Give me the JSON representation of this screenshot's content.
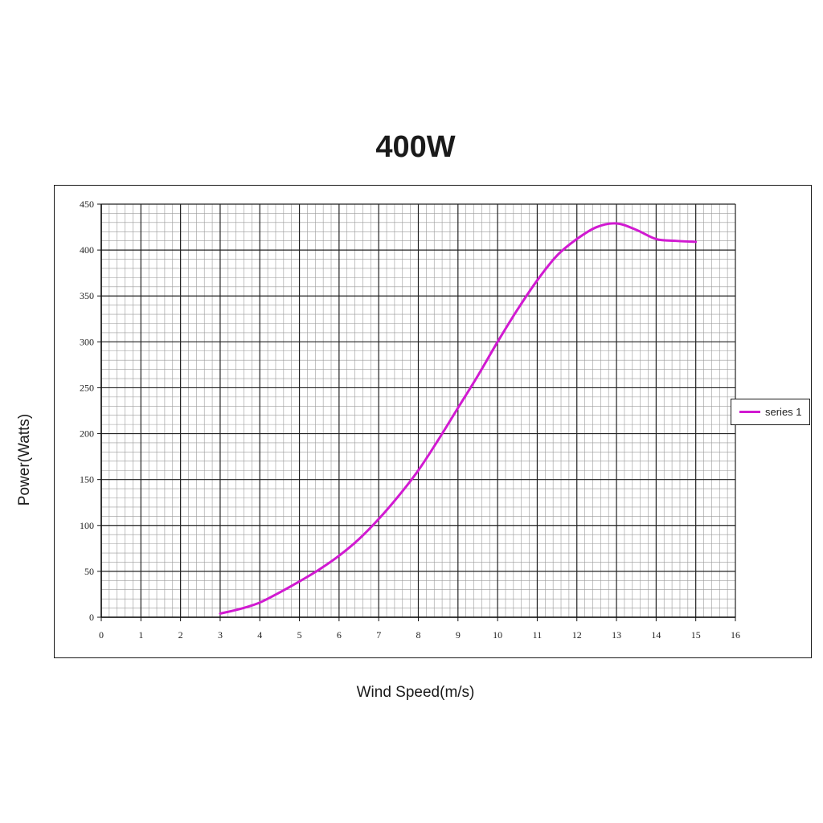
{
  "chart_data": {
    "type": "line",
    "title": "400W",
    "xlabel": "Wind Speed(m/s)",
    "ylabel": "Power(Watts)",
    "xlim": [
      0,
      16
    ],
    "ylim": [
      0,
      450
    ],
    "x_ticks": [
      0,
      1,
      2,
      3,
      4,
      5,
      6,
      7,
      8,
      9,
      10,
      11,
      12,
      13,
      14,
      15,
      16
    ],
    "y_ticks": [
      0,
      50,
      100,
      150,
      200,
      250,
      300,
      350,
      400,
      450
    ],
    "grid": true,
    "legend_position": "right",
    "series": [
      {
        "name": "series 1",
        "color": "#d11ad1",
        "x": [
          3,
          3.5,
          4,
          4.5,
          5,
          5.5,
          6,
          6.5,
          7,
          7.5,
          8,
          8.5,
          9,
          9.5,
          10,
          10.5,
          11,
          11.5,
          12,
          12.5,
          13,
          13.5,
          14,
          14.5,
          15
        ],
        "y": [
          4,
          9,
          16,
          27,
          39,
          52,
          67,
          85,
          107,
          132,
          160,
          193,
          228,
          263,
          300,
          335,
          367,
          394,
          412,
          425,
          429,
          422,
          412,
          410,
          409
        ]
      }
    ]
  }
}
